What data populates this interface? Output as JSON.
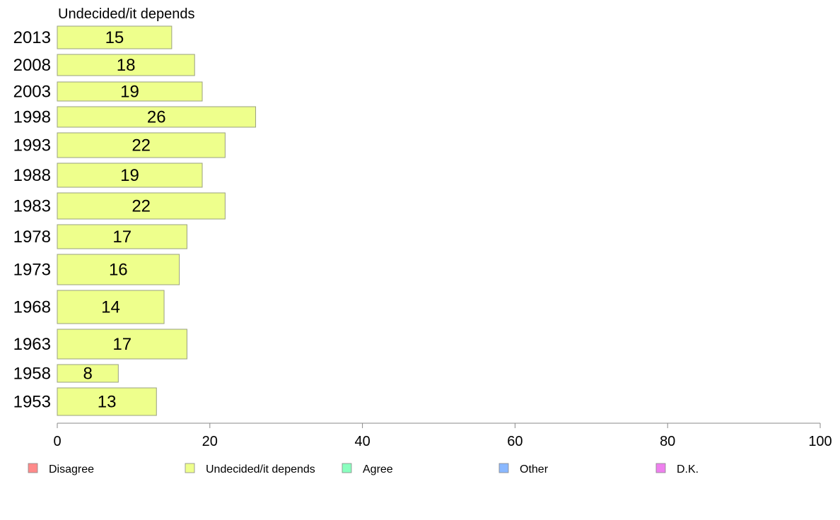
{
  "chart_data": {
    "type": "bar",
    "orientation": "horizontal",
    "title": "Undecided/it depends",
    "categories": [
      "2013",
      "2008",
      "2003",
      "1998",
      "1993",
      "1988",
      "1983",
      "1978",
      "1973",
      "1968",
      "1963",
      "1958",
      "1953"
    ],
    "values": [
      15,
      18,
      19,
      26,
      22,
      19,
      22,
      17,
      16,
      14,
      17,
      8,
      13
    ],
    "xlim": [
      0,
      100
    ],
    "xticks": [
      "0",
      "20",
      "40",
      "60",
      "80",
      "100"
    ],
    "xlabel": "",
    "ylabel": "",
    "grid": false,
    "legend_position": "bottom",
    "bar_color": "#eeff8c",
    "bar_stroke": "#9aa080",
    "legend": [
      {
        "label": "Disagree",
        "color": "#ff8a8a"
      },
      {
        "label": "Undecided/it depends",
        "color": "#eeff8c"
      },
      {
        "label": "Agree",
        "color": "#8affbf"
      },
      {
        "label": "Other",
        "color": "#8ab8ff"
      },
      {
        "label": "D.K.",
        "color": "#ee80ee"
      }
    ]
  }
}
